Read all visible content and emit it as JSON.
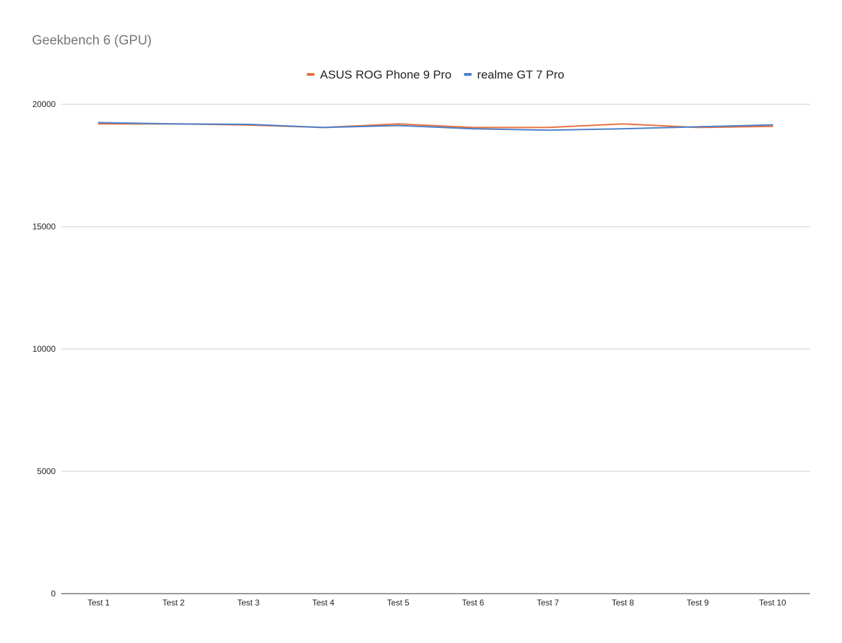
{
  "chart_data": {
    "type": "line",
    "title": "Geekbench 6 (GPU)",
    "xlabel": "",
    "ylabel": "",
    "categories": [
      "Test 1",
      "Test 2",
      "Test 3",
      "Test 4",
      "Test 5",
      "Test 6",
      "Test 7",
      "Test 8",
      "Test 9",
      "Test 10"
    ],
    "ylim": [
      0,
      20000
    ],
    "yticks": [
      "0",
      "5000",
      "10000",
      "15000",
      "20000"
    ],
    "grid": true,
    "legend_position": "top-center",
    "series": [
      {
        "name": "ASUS ROG Phone 9 Pro",
        "color": "#e8703f",
        "values": [
          19200,
          19200,
          19150,
          19050,
          19200,
          19050,
          19050,
          19200,
          19050,
          19100
        ]
      },
      {
        "name": "realme GT 7 Pro",
        "color": "#4a7fcb",
        "values": [
          19250,
          19200,
          19180,
          19050,
          19130,
          19000,
          18940,
          19000,
          19080,
          19160
        ]
      }
    ]
  }
}
